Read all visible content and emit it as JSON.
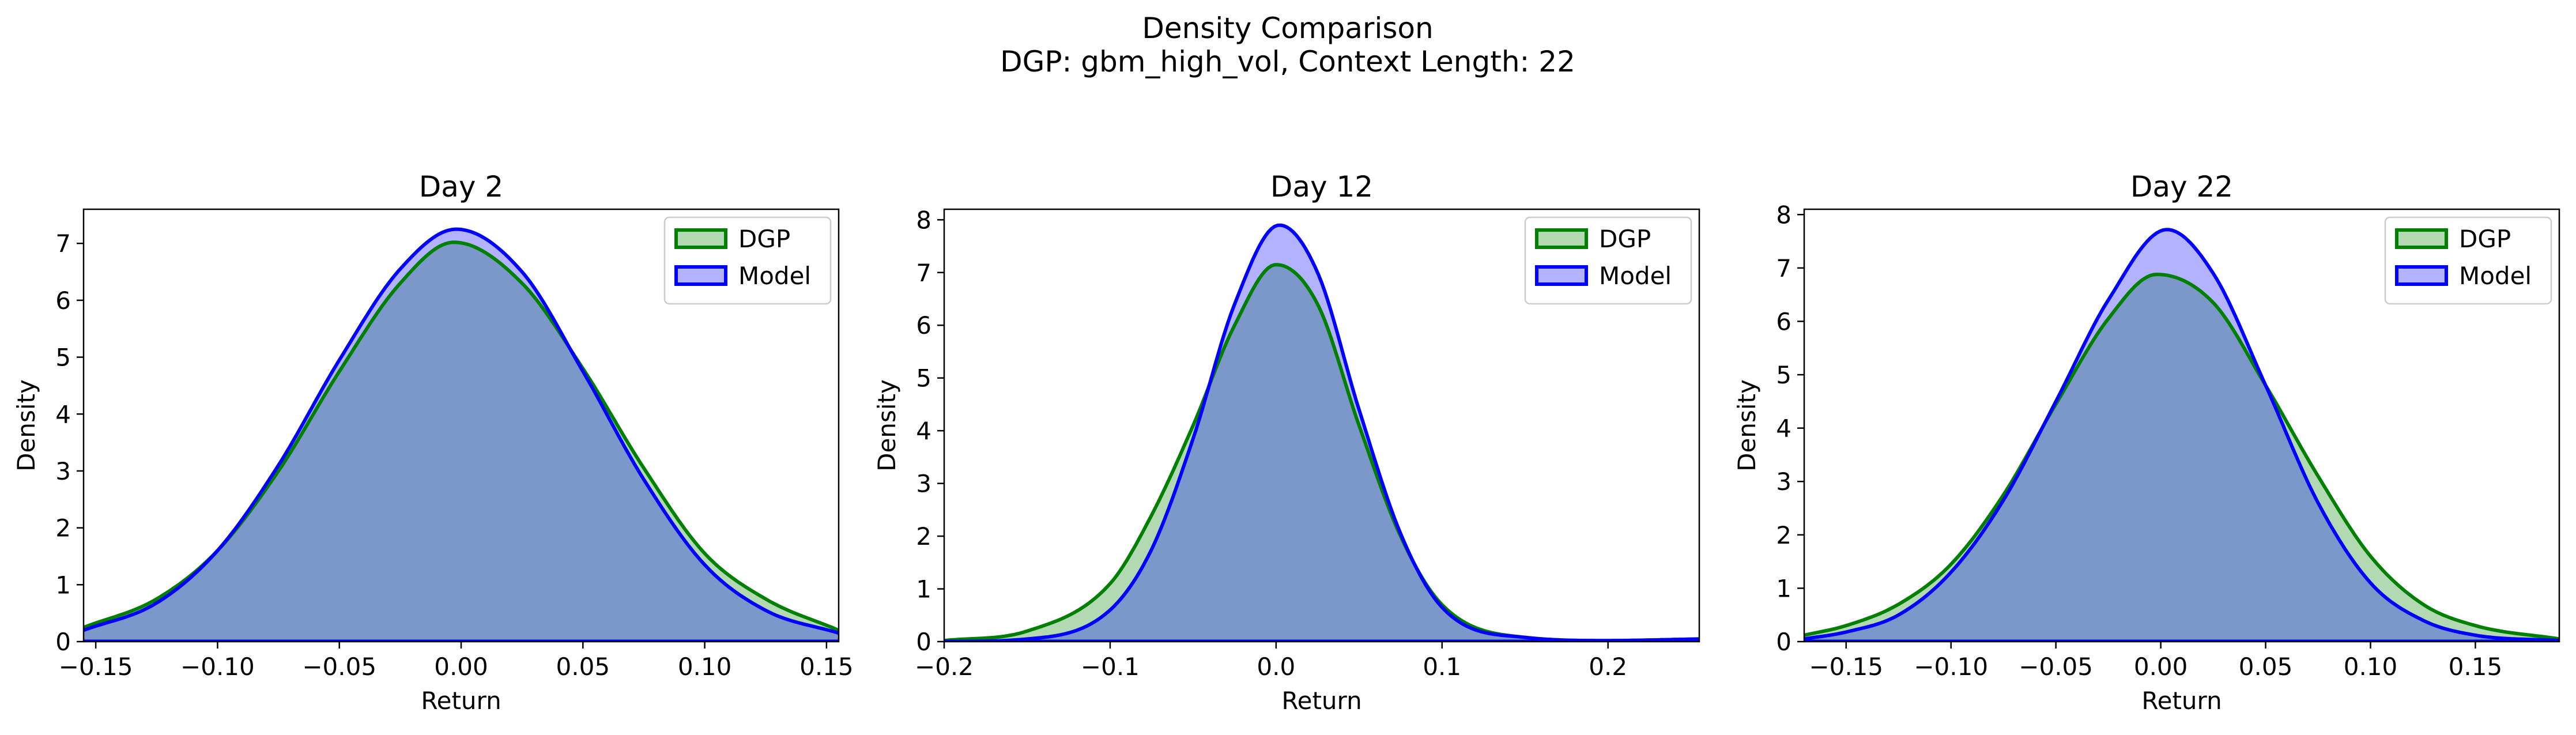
{
  "figure": {
    "title_line1": "Density Comparison",
    "title_line2": "DGP: gbm_high_vol, Context Length: 22"
  },
  "colors": {
    "dgp_line": "#008000",
    "dgp_fill": "#008000",
    "model_line": "#0000ff",
    "model_fill": "#0000ff"
  },
  "chart_data": [
    {
      "type": "area",
      "title": "Day 2",
      "xlabel": "Return",
      "ylabel": "Density",
      "xlim": [
        -0.155,
        0.155
      ],
      "ylim": [
        0,
        7.6
      ],
      "xticks": [
        -0.15,
        -0.1,
        -0.05,
        0.0,
        0.05,
        0.1,
        0.15
      ],
      "xtick_labels": [
        "−0.15",
        "−0.10",
        "−0.05",
        "0.00",
        "0.05",
        "0.10",
        "0.15"
      ],
      "yticks": [
        0,
        1,
        2,
        3,
        4,
        5,
        6,
        7
      ],
      "ytick_labels": [
        "0",
        "1",
        "2",
        "3",
        "4",
        "5",
        "6",
        "7"
      ],
      "legend": "top-right",
      "series": [
        {
          "name": "DGP",
          "x": [
            -0.155,
            -0.125,
            -0.1,
            -0.075,
            -0.05,
            -0.025,
            -0.003,
            0.025,
            0.05,
            0.075,
            0.1,
            0.125,
            0.155
          ],
          "y": [
            0.25,
            0.75,
            1.6,
            3.0,
            4.75,
            6.3,
            7.02,
            6.3,
            4.8,
            3.05,
            1.55,
            0.75,
            0.2
          ]
        },
        {
          "name": "Model",
          "x": [
            -0.155,
            -0.125,
            -0.1,
            -0.075,
            -0.05,
            -0.025,
            -0.002,
            0.025,
            0.05,
            0.075,
            0.1,
            0.125,
            0.155
          ],
          "y": [
            0.2,
            0.68,
            1.6,
            3.1,
            4.95,
            6.55,
            7.25,
            6.5,
            4.75,
            2.85,
            1.35,
            0.55,
            0.15
          ]
        }
      ]
    },
    {
      "type": "area",
      "title": "Day 12",
      "xlabel": "Return",
      "ylabel": "Density",
      "xlim": [
        -0.2,
        0.255
      ],
      "ylim": [
        0,
        8.2
      ],
      "xticks": [
        -0.2,
        -0.1,
        0.0,
        0.1,
        0.2
      ],
      "xtick_labels": [
        "−0.2",
        "−0.1",
        "0.0",
        "0.1",
        "0.2"
      ],
      "yticks": [
        0,
        1,
        2,
        3,
        4,
        5,
        6,
        7,
        8
      ],
      "ytick_labels": [
        "0",
        "1",
        "2",
        "3",
        "4",
        "5",
        "6",
        "7",
        "8"
      ],
      "legend": "top-right",
      "series": [
        {
          "name": "DGP",
          "x": [
            -0.2,
            -0.15,
            -0.1,
            -0.075,
            -0.05,
            -0.025,
            0.0,
            0.025,
            0.05,
            0.075,
            0.1,
            0.15,
            0.2,
            0.255
          ],
          "y": [
            0.02,
            0.2,
            1.1,
            2.4,
            4.1,
            6.0,
            7.15,
            6.4,
            4.1,
            2.0,
            0.7,
            0.08,
            0.02,
            0.05
          ]
        },
        {
          "name": "Model",
          "x": [
            -0.2,
            -0.15,
            -0.1,
            -0.075,
            -0.05,
            -0.025,
            0.002,
            0.025,
            0.05,
            0.075,
            0.1,
            0.15,
            0.2,
            0.255
          ],
          "y": [
            0.0,
            0.05,
            0.6,
            1.75,
            3.85,
            6.4,
            7.9,
            7.0,
            4.4,
            2.05,
            0.65,
            0.08,
            0.02,
            0.05
          ]
        }
      ]
    },
    {
      "type": "area",
      "title": "Day 22",
      "xlabel": "Return",
      "ylabel": "Density",
      "xlim": [
        -0.17,
        0.19
      ],
      "ylim": [
        0,
        8.1
      ],
      "xticks": [
        -0.15,
        -0.1,
        -0.05,
        0.0,
        0.05,
        0.1,
        0.15
      ],
      "xtick_labels": [
        "−0.15",
        "−0.10",
        "−0.05",
        "0.00",
        "0.05",
        "0.10",
        "0.15"
      ],
      "yticks": [
        0,
        1,
        2,
        3,
        4,
        5,
        6,
        7,
        8
      ],
      "ytick_labels": [
        "0",
        "1",
        "2",
        "3",
        "4",
        "5",
        "6",
        "7",
        "8"
      ],
      "legend": "top-right",
      "series": [
        {
          "name": "DGP",
          "x": [
            -0.17,
            -0.15,
            -0.125,
            -0.1,
            -0.075,
            -0.05,
            -0.025,
            -0.002,
            0.025,
            0.05,
            0.075,
            0.1,
            0.125,
            0.15,
            0.19
          ],
          "y": [
            0.12,
            0.3,
            0.7,
            1.45,
            2.75,
            4.45,
            6.05,
            6.88,
            6.35,
            4.8,
            3.1,
            1.6,
            0.7,
            0.3,
            0.05
          ]
        },
        {
          "name": "Model",
          "x": [
            -0.17,
            -0.15,
            -0.125,
            -0.1,
            -0.075,
            -0.05,
            -0.025,
            0.003,
            0.025,
            0.05,
            0.075,
            0.1,
            0.125,
            0.15,
            0.19
          ],
          "y": [
            0.05,
            0.18,
            0.5,
            1.3,
            2.65,
            4.5,
            6.4,
            7.72,
            6.9,
            4.8,
            2.6,
            1.1,
            0.4,
            0.12,
            0.02
          ]
        }
      ]
    }
  ]
}
